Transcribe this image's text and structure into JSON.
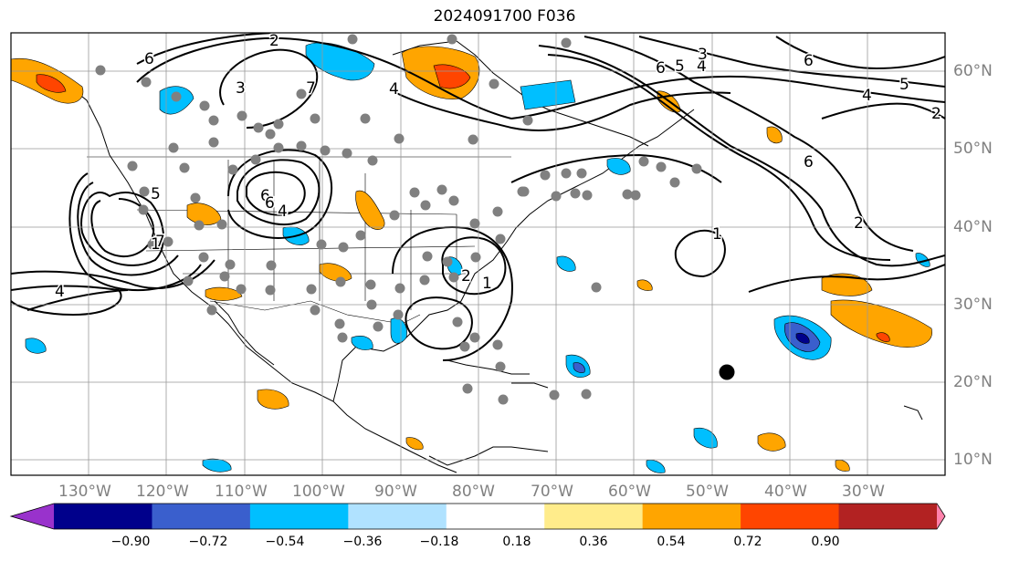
{
  "title": "2024091700 F036",
  "map": {
    "lon_range": [
      -140,
      -18
    ],
    "lat_range": [
      8,
      65
    ],
    "lon_ticks": [
      "130°W",
      "120°W",
      "110°W",
      "100°W",
      "90°W",
      "80°W",
      "70°W",
      "60°W",
      "50°W",
      "40°W",
      "30°W"
    ],
    "lat_ticks": [
      "10°N",
      "20°N",
      "30°N",
      "40°N",
      "50°N",
      "60°N"
    ],
    "grid": true,
    "contour_color": "#000000",
    "contour_labels": [
      "6",
      "2",
      "3",
      "7",
      "4",
      "6",
      "6",
      "5",
      "4",
      "4",
      "3",
      "6",
      "5",
      "4",
      "2",
      "6",
      "7",
      "2",
      "5",
      "6",
      "4",
      "1",
      "1",
      "1",
      "2"
    ],
    "station_color": "#808080",
    "storm_marker_color": "#000000"
  },
  "colorbar": {
    "tick_labels": [
      "−0.90",
      "−0.72",
      "−0.54",
      "−0.36",
      "−0.18",
      "0.18",
      "0.36",
      "0.54",
      "0.72",
      "0.90"
    ],
    "colors": [
      "#9932cc",
      "#00008b",
      "#3a5fcd",
      "#00bfff",
      "#b0e2ff",
      "#ffffff",
      "#ffec8b",
      "#ffa500",
      "#ff4500",
      "#b22222",
      "#ff82ab"
    ]
  }
}
